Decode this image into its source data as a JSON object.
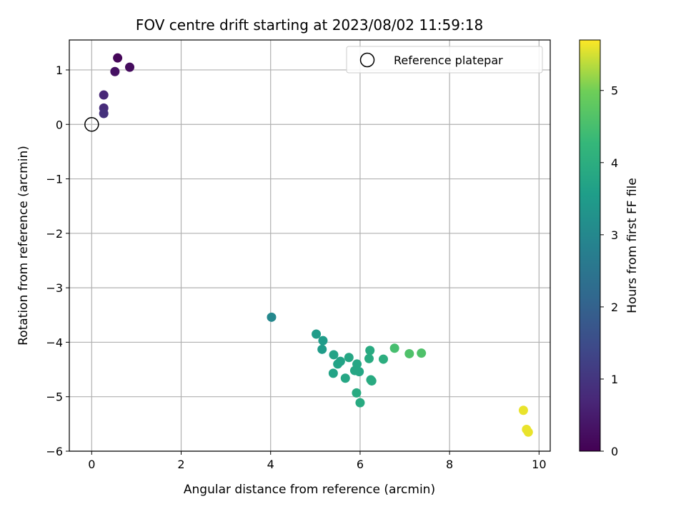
{
  "chart_data": {
    "type": "scatter",
    "title": "FOV centre drift starting at 2023/08/02 11:59:18",
    "xlabel": "Angular distance from reference (arcmin)",
    "ylabel": "Rotation from reference (arcmin)",
    "xlim": [
      -0.5,
      10.25
    ],
    "ylim": [
      -6,
      1.55
    ],
    "xticks": [
      0,
      2,
      4,
      6,
      8,
      10
    ],
    "yticks": [
      1,
      0,
      -1,
      -2,
      -3,
      -4,
      -5,
      -6
    ],
    "xtick_labels": [
      "0",
      "2",
      "4",
      "6",
      "8",
      "10"
    ],
    "ytick_labels": [
      "1",
      "0",
      "−1",
      "−2",
      "−3",
      "−4",
      "−5",
      "−6"
    ],
    "grid": true,
    "colormap": "viridis",
    "colorbar": {
      "label": "Hours from first FF file",
      "range": [
        0,
        5.7
      ],
      "ticks": [
        0,
        1,
        2,
        3,
        4,
        5
      ],
      "tick_labels": [
        "0",
        "1",
        "2",
        "3",
        "4",
        "5"
      ]
    },
    "legend": {
      "position": "top-right",
      "entries": [
        {
          "label": "Reference platepar",
          "marker": "open-circle"
        }
      ]
    },
    "reference_point": {
      "x": 0,
      "y": 0
    },
    "points": [
      {
        "x": 0.58,
        "y": 1.22,
        "hours": 0.1
      },
      {
        "x": 0.85,
        "y": 1.05,
        "hours": 0.2
      },
      {
        "x": 0.52,
        "y": 0.97,
        "hours": 0.3
      },
      {
        "x": 0.27,
        "y": 0.54,
        "hours": 0.7
      },
      {
        "x": 0.27,
        "y": 0.3,
        "hours": 0.8
      },
      {
        "x": 0.27,
        "y": 0.2,
        "hours": 0.9
      },
      {
        "x": 4.02,
        "y": -3.54,
        "hours": 3.0
      },
      {
        "x": 5.02,
        "y": -3.85,
        "hours": 3.5
      },
      {
        "x": 5.17,
        "y": -3.97,
        "hours": 3.5
      },
      {
        "x": 5.15,
        "y": -4.13,
        "hours": 3.5
      },
      {
        "x": 5.41,
        "y": -4.23,
        "hours": 3.7
      },
      {
        "x": 5.56,
        "y": -4.35,
        "hours": 3.7
      },
      {
        "x": 5.5,
        "y": -4.4,
        "hours": 3.7
      },
      {
        "x": 5.75,
        "y": -4.28,
        "hours": 3.8
      },
      {
        "x": 5.93,
        "y": -4.4,
        "hours": 3.8
      },
      {
        "x": 5.88,
        "y": -4.52,
        "hours": 3.8
      },
      {
        "x": 5.98,
        "y": -4.54,
        "hours": 3.8
      },
      {
        "x": 5.4,
        "y": -4.57,
        "hours": 3.7
      },
      {
        "x": 5.67,
        "y": -4.66,
        "hours": 3.8
      },
      {
        "x": 6.22,
        "y": -4.15,
        "hours": 3.9
      },
      {
        "x": 6.2,
        "y": -4.3,
        "hours": 3.9
      },
      {
        "x": 6.24,
        "y": -4.69,
        "hours": 3.9
      },
      {
        "x": 6.26,
        "y": -4.71,
        "hours": 3.9
      },
      {
        "x": 5.92,
        "y": -4.93,
        "hours": 3.9
      },
      {
        "x": 6.0,
        "y": -5.11,
        "hours": 3.9
      },
      {
        "x": 6.52,
        "y": -4.31,
        "hours": 4.0
      },
      {
        "x": 6.77,
        "y": -4.11,
        "hours": 4.5
      },
      {
        "x": 7.1,
        "y": -4.21,
        "hours": 4.6
      },
      {
        "x": 7.37,
        "y": -4.2,
        "hours": 4.6
      },
      {
        "x": 9.65,
        "y": -5.25,
        "hours": 5.6
      },
      {
        "x": 9.72,
        "y": -5.6,
        "hours": 5.6
      },
      {
        "x": 9.76,
        "y": -5.65,
        "hours": 5.6
      }
    ]
  }
}
